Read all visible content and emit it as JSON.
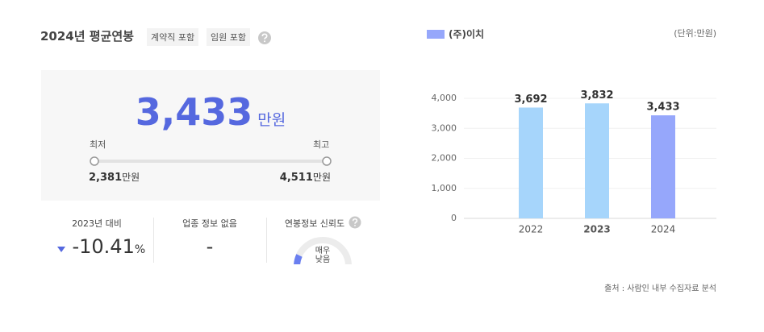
{
  "header": {
    "title": "2024년 평균연봉",
    "tags": [
      "계약직 포함",
      "임원 포함"
    ]
  },
  "summary": {
    "value": "3,433",
    "unit": "만원",
    "min_label": "최저",
    "max_label": "최고",
    "min_value": "2,381",
    "min_unit": "만원",
    "max_value": "4,511",
    "max_unit": "만원"
  },
  "stats": [
    {
      "label": "2023년 대비",
      "value": "-10.41",
      "unit": "%"
    },
    {
      "label": "업종 정보 없음",
      "value": "-"
    },
    {
      "label": "연봉정보 신뢰도",
      "value": "매우 낮음"
    }
  ],
  "chart_data": {
    "type": "bar",
    "unit": "(단위:만원)",
    "series": [
      {
        "name": "(주)이치",
        "color": "#96a7fb",
        "values": [
          3692,
          3832,
          3433
        ],
        "value_labels": [
          "3,692",
          "3,832",
          "3,433"
        ],
        "colors": [
          "#a6d5fb",
          "#a6d5fb",
          "#96a7fb"
        ]
      }
    ],
    "categories": [
      "2022",
      "2023",
      "2024"
    ],
    "ylim": [
      0,
      4000
    ],
    "yticks": [
      0,
      {
        "value": 1000,
        "label": "1,000"
      },
      {
        "value": 2000,
        "label": "2,000"
      },
      {
        "value": 3000,
        "label": "3,000"
      },
      {
        "value": 4000,
        "label": "4,000"
      }
    ],
    "grid": true
  },
  "source": "출처 : 사람인 내부 수집자료 분석"
}
